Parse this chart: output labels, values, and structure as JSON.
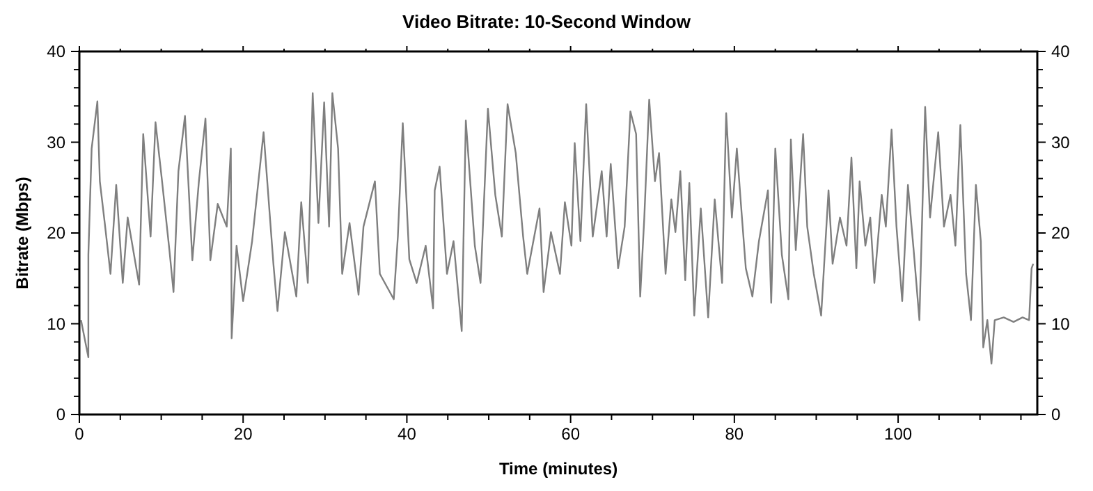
{
  "chart_data": {
    "type": "line",
    "title": "Video Bitrate: 10-Second Window",
    "xlabel": "Time (minutes)",
    "ylabel": "Bitrate (Mbps)",
    "xlim": [
      0,
      117
    ],
    "xticks": [
      0,
      {
        "value": 5,
        "label": null
      },
      {
        "value": 10,
        "label": null
      },
      {
        "value": 15,
        "label": null
      },
      20,
      {
        "value": 25,
        "label": null
      },
      {
        "value": 30,
        "label": null
      },
      {
        "value": 35,
        "label": null
      },
      40,
      {
        "value": 45,
        "label": null
      },
      {
        "value": 50,
        "label": null
      },
      {
        "value": 55,
        "label": null
      },
      60,
      {
        "value": 65,
        "label": null
      },
      {
        "value": 70,
        "label": null
      },
      {
        "value": 75,
        "label": null
      },
      80,
      {
        "value": 85,
        "label": null
      },
      {
        "value": 90,
        "label": null
      },
      {
        "value": 95,
        "label": null
      },
      100,
      {
        "value": 105,
        "label": null
      },
      {
        "value": 110,
        "label": null
      },
      {
        "value": 115,
        "label": null
      }
    ],
    "ylim": [
      0,
      40
    ],
    "yticks": [
      0,
      {
        "value": 2,
        "label": null
      },
      {
        "value": 4,
        "label": null
      },
      {
        "value": 6,
        "label": null
      },
      {
        "value": 8,
        "label": null
      },
      10,
      {
        "value": 12,
        "label": null
      },
      {
        "value": 14,
        "label": null
      },
      {
        "value": 16,
        "label": null
      },
      {
        "value": 18,
        "label": null
      },
      20,
      {
        "value": 22,
        "label": null
      },
      {
        "value": 24,
        "label": null
      },
      {
        "value": 26,
        "label": null
      },
      {
        "value": 28,
        "label": null
      },
      30,
      {
        "value": 32,
        "label": null
      },
      {
        "value": 34,
        "label": null
      },
      {
        "value": 36,
        "label": null
      },
      {
        "value": 38,
        "label": null
      },
      40
    ],
    "y2lim": [
      0,
      40
    ],
    "y2ticks": [
      0,
      {
        "value": 2,
        "label": null
      },
      {
        "value": 4,
        "label": null
      },
      {
        "value": 6,
        "label": null
      },
      {
        "value": 8,
        "label": null
      },
      10,
      {
        "value": 12,
        "label": null
      },
      {
        "value": 14,
        "label": null
      },
      {
        "value": 16,
        "label": null
      },
      {
        "value": 18,
        "label": null
      },
      20,
      {
        "value": 22,
        "label": null
      },
      {
        "value": 24,
        "label": null
      },
      {
        "value": 26,
        "label": null
      },
      {
        "value": 28,
        "label": null
      },
      30,
      {
        "value": 32,
        "label": null
      },
      {
        "value": 34,
        "label": null
      },
      {
        "value": 36,
        "label": null
      },
      {
        "value": 38,
        "label": null
      },
      40
    ],
    "grid": false,
    "marker": "none",
    "line_style": "solid",
    "series": [
      {
        "color": "#7f7f7f",
        "x": [
          0.2,
          1.1,
          1.1,
          1.5,
          2.2,
          2.5,
          3.1,
          3.8,
          4.5,
          5.3,
          5.9,
          7.3,
          7.8,
          8.7,
          9.3,
          10.1,
          11.0,
          11.5,
          12.1,
          12.9,
          13.8,
          14.6,
          15.4,
          16.0,
          16.9,
          18.0,
          18.5,
          18.6,
          19.2,
          20.0,
          21.1,
          22.5,
          23.7,
          24.2,
          25.1,
          26.5,
          27.1,
          27.9,
          28.5,
          29.2,
          29.9,
          30.5,
          30.9,
          31.6,
          32.1,
          33.0,
          34.1,
          34.7,
          36.1,
          36.7,
          38.4,
          38.9,
          39.5,
          40.3,
          41.2,
          42.3,
          43.2,
          43.4,
          44.0,
          44.9,
          45.7,
          46.7,
          47.2,
          48.3,
          49.0,
          49.9,
          50.8,
          51.6,
          52.3,
          53.3,
          54.2,
          54.7,
          56.2,
          56.7,
          57.6,
          58.7,
          59.3,
          60.1,
          60.5,
          61.2,
          61.9,
          62.7,
          63.8,
          64.4,
          64.9,
          65.8,
          66.6,
          67.3,
          68.0,
          68.5,
          69.0,
          69.6,
          70.3,
          70.8,
          71.6,
          72.3,
          72.8,
          73.4,
          74.0,
          74.5,
          75.1,
          75.9,
          76.8,
          77.6,
          78.5,
          79.0,
          79.7,
          80.3,
          80.8,
          81.4,
          82.2,
          83.0,
          84.1,
          84.5,
          85.0,
          85.8,
          86.6,
          86.9,
          87.5,
          88.4,
          88.9,
          89.7,
          90.6,
          91.5,
          92.0,
          92.9,
          93.7,
          94.3,
          94.9,
          95.3,
          96.0,
          96.6,
          97.1,
          98.0,
          98.5,
          99.2,
          99.8,
          100.5,
          101.2,
          101.9,
          102.6,
          103.3,
          103.9,
          104.9,
          105.6,
          106.4,
          107.0,
          107.6,
          108.3,
          108.9,
          109.5,
          110.1,
          110.4,
          110.9,
          111.4,
          111.8,
          112.9,
          114.1,
          115.2,
          116.0,
          116.3,
          116.5
        ],
        "values": [
          10.4,
          6.3,
          17.6,
          29.3,
          34.5,
          25.7,
          21.1,
          15.5,
          25.3,
          14.5,
          21.7,
          14.3,
          30.9,
          19.6,
          32.2,
          25.7,
          18.1,
          13.5,
          26.8,
          32.9,
          17.0,
          25.7,
          32.6,
          17.0,
          23.2,
          20.7,
          29.3,
          8.4,
          18.6,
          12.5,
          19.1,
          31.1,
          16.6,
          11.4,
          20.1,
          13.0,
          23.4,
          14.5,
          35.4,
          21.1,
          34.4,
          20.7,
          35.4,
          29.3,
          15.5,
          21.1,
          13.2,
          20.7,
          25.7,
          15.5,
          12.7,
          19.6,
          32.1,
          17.1,
          14.5,
          18.6,
          11.7,
          24.7,
          27.3,
          15.5,
          19.1,
          9.2,
          32.4,
          18.6,
          14.5,
          33.7,
          24.2,
          19.6,
          34.2,
          28.8,
          19.6,
          15.5,
          22.7,
          13.5,
          20.1,
          15.5,
          23.4,
          18.6,
          29.9,
          19.1,
          34.2,
          19.6,
          26.8,
          19.6,
          27.6,
          16.1,
          20.7,
          33.4,
          30.9,
          13.0,
          21.7,
          34.7,
          25.7,
          28.8,
          15.5,
          23.7,
          20.1,
          26.8,
          14.8,
          25.5,
          10.9,
          22.7,
          10.7,
          23.7,
          14.5,
          33.2,
          21.7,
          29.3,
          23.2,
          16.1,
          13.0,
          19.1,
          24.7,
          12.3,
          29.3,
          17.6,
          12.7,
          30.3,
          18.1,
          30.9,
          20.7,
          15.5,
          10.9,
          24.7,
          16.6,
          21.7,
          18.6,
          28.3,
          16.1,
          25.7,
          18.6,
          21.7,
          14.5,
          24.2,
          20.7,
          31.4,
          20.7,
          12.5,
          25.3,
          18.1,
          10.4,
          33.9,
          21.7,
          31.1,
          20.7,
          24.2,
          18.6,
          31.9,
          15.5,
          10.4,
          25.3,
          19.1,
          7.4,
          10.4,
          5.6,
          10.4,
          10.7,
          10.2,
          10.7,
          10.4,
          16.1,
          16.6
        ]
      }
    ]
  }
}
